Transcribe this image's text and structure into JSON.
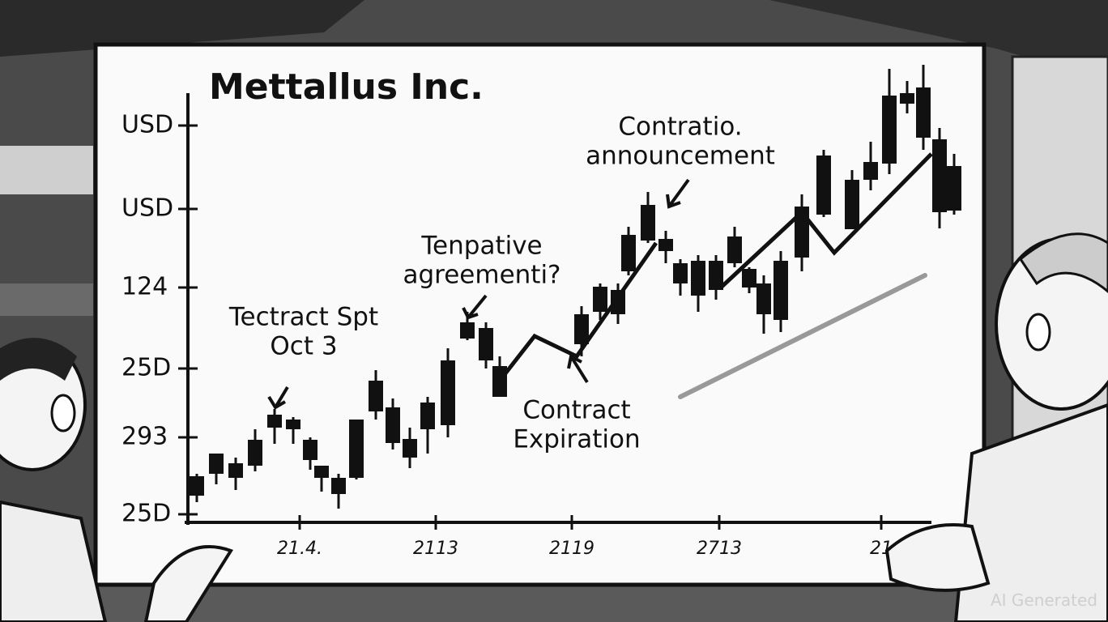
{
  "board": {
    "title": "Mettallus Inc.",
    "y_labels": [
      "USD",
      "USD",
      "124",
      "25D",
      "293",
      "25D"
    ],
    "x_labels": [
      "21.4.",
      "2113",
      "2119",
      "2713",
      "21"
    ],
    "annotations": [
      {
        "lines": [
          "Tectract Spt",
          "Oct 3"
        ]
      },
      {
        "lines": [
          "Tenpative",
          "agreementi?"
        ]
      },
      {
        "lines": [
          "Contract",
          "Expiration"
        ]
      },
      {
        "lines": [
          "Contratio.",
          "announcement"
        ]
      }
    ]
  },
  "watermark": "AI Generated"
}
